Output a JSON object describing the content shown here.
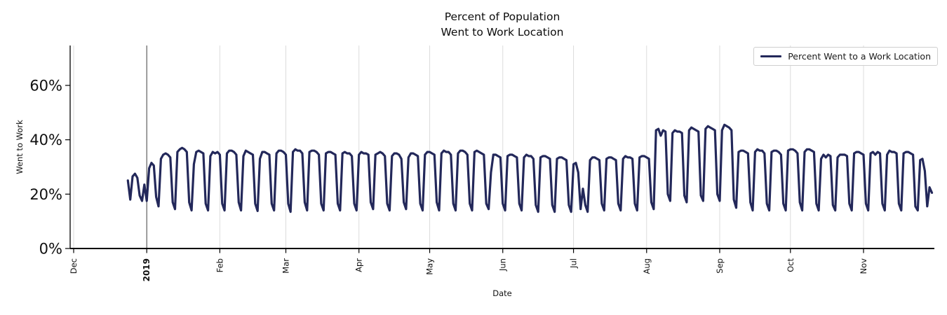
{
  "title": {
    "line1": "Percent of Population",
    "line2": "Went to Work Location"
  },
  "colors": {
    "line": "#23285a",
    "grid": "#dcdcdc",
    "year_line": "#3f3f3f",
    "spine": "#000000",
    "text": "#111111"
  },
  "chart_data": {
    "type": "line",
    "title": "Percent of Population\nWent to Work Location",
    "xlabel": "Date",
    "ylabel": "Went to Work",
    "legend_label": "Percent Went to a Work Location",
    "legend_position": "upper right",
    "grid": "vertical month gridlines only",
    "ylim": [
      0,
      75
    ],
    "y_unit": "%",
    "xlim_days_from_2018_12_01": [
      -1.5,
      365.5
    ],
    "y_ticks": [
      {
        "value": 0,
        "label": "0%"
      },
      {
        "value": 20,
        "label": "20%"
      },
      {
        "value": 40,
        "label": "40%"
      },
      {
        "value": 60,
        "label": "60%"
      }
    ],
    "x_ticks": [
      {
        "day": 0,
        "label": "Dec",
        "emphasis": false
      },
      {
        "day": 31,
        "label": "2019",
        "emphasis": true
      },
      {
        "day": 62,
        "label": "Feb",
        "emphasis": false
      },
      {
        "day": 90,
        "label": "Mar",
        "emphasis": false
      },
      {
        "day": 121,
        "label": "Apr",
        "emphasis": false
      },
      {
        "day": 151,
        "label": "May",
        "emphasis": false
      },
      {
        "day": 182,
        "label": "Jun",
        "emphasis": false
      },
      {
        "day": 212,
        "label": "Jul",
        "emphasis": false
      },
      {
        "day": 243,
        "label": "Aug",
        "emphasis": false
      },
      {
        "day": 274,
        "label": "Sep",
        "emphasis": false
      },
      {
        "day": 304,
        "label": "Oct",
        "emphasis": false
      },
      {
        "day": 335,
        "label": "Nov",
        "emphasis": false
      }
    ],
    "series": [
      {
        "name": "Percent Went to a Work Location",
        "color": "#23285a",
        "unit": "%",
        "start_date": "2018-12-24",
        "start_day_offset_from_2018_12_01": 23,
        "end_date": "2019-11-30",
        "cadence": "daily; weekly_values are Mon-Sun weeks, last week ends Sat Nov 30",
        "weekly_values": [
          [
            25,
            18,
            26.5,
            27.5,
            26,
            19.5,
            17.5
          ],
          [
            23.5,
            17.5,
            29.5,
            31.5,
            30.5,
            19,
            15.5
          ],
          [
            33,
            34.5,
            35,
            34.5,
            33.5,
            17,
            14.5
          ],
          [
            35.5,
            36.5,
            37,
            36.5,
            35.5,
            17,
            14
          ],
          [
            31,
            35.5,
            36,
            35.5,
            35,
            16.5,
            14
          ],
          [
            34,
            35.5,
            35,
            35.5,
            34.5,
            16.5,
            14
          ],
          [
            35,
            36,
            36,
            35.5,
            34.5,
            17,
            14
          ],
          [
            34,
            36,
            35.5,
            35,
            34.5,
            16.5,
            13.8
          ],
          [
            33,
            35.5,
            35.5,
            35,
            34.5,
            16.5,
            14
          ],
          [
            35,
            36,
            36,
            35.5,
            34.5,
            16.5,
            13.5
          ],
          [
            35.5,
            36.5,
            36,
            36,
            35,
            17,
            14
          ],
          [
            35.5,
            36,
            36,
            35.5,
            34.5,
            16.5,
            14
          ],
          [
            35,
            35.5,
            35.5,
            35,
            34.5,
            16.5,
            14
          ],
          [
            35,
            35.5,
            35,
            35,
            34,
            16.5,
            14
          ],
          [
            34.5,
            35.5,
            35,
            35,
            34.5,
            17,
            14.5
          ],
          [
            34.5,
            35,
            35.5,
            35,
            34,
            16.5,
            14
          ],
          [
            34,
            35,
            35,
            34.5,
            33,
            17,
            14.5
          ],
          [
            33.5,
            35,
            35,
            34.5,
            34,
            16.5,
            14
          ],
          [
            34.5,
            35.5,
            35.5,
            35,
            34.5,
            17,
            14
          ],
          [
            35,
            36,
            35.5,
            35.5,
            34.5,
            16.5,
            14
          ],
          [
            35,
            36,
            36,
            35.5,
            34.5,
            16.5,
            14
          ],
          [
            35.5,
            36,
            35.5,
            35,
            34.5,
            16.5,
            14.5
          ],
          [
            28,
            34.5,
            34.5,
            34,
            33.5,
            16.5,
            14
          ],
          [
            34,
            34.5,
            34.5,
            34,
            33.5,
            16.5,
            14
          ],
          [
            33.5,
            34.5,
            34,
            34,
            33,
            16,
            13.5
          ],
          [
            33.5,
            34,
            34,
            33.5,
            33,
            16,
            13.5
          ],
          [
            33,
            33.5,
            33.5,
            33,
            32.5,
            16,
            13.5
          ],
          [
            31,
            31.5,
            28,
            14.5,
            22,
            16,
            13.5
          ],
          [
            32.5,
            33.5,
            33.5,
            33,
            32.5,
            16.5,
            14
          ],
          [
            33,
            33.5,
            33.5,
            33,
            32.5,
            16.5,
            14
          ],
          [
            33,
            34,
            33.5,
            33.5,
            33,
            16.5,
            14
          ],
          [
            33.5,
            34,
            34,
            33.5,
            33,
            17,
            14.5
          ],
          [
            43.5,
            44,
            41.5,
            43.5,
            43,
            20,
            17.5
          ],
          [
            42.5,
            43.5,
            43,
            43,
            42.5,
            19.5,
            17
          ],
          [
            43.5,
            44.5,
            44,
            43.5,
            43,
            19.5,
            17.5
          ],
          [
            44,
            45,
            44.5,
            44,
            43.5,
            20,
            17.5
          ],
          [
            43.5,
            45.5,
            45,
            44.5,
            43.5,
            18,
            15
          ],
          [
            35.5,
            36,
            36,
            35.5,
            35,
            17,
            14
          ],
          [
            35.5,
            36.5,
            36,
            36,
            35,
            16.5,
            14
          ],
          [
            35.5,
            36,
            36,
            35.5,
            34.5,
            16.5,
            14
          ],
          [
            36,
            36.5,
            36.5,
            36,
            35,
            17,
            14
          ],
          [
            35.5,
            36.5,
            36.5,
            36,
            35.5,
            16.5,
            14
          ],
          [
            33,
            34.5,
            33.5,
            34.5,
            34,
            16,
            14
          ],
          [
            33.5,
            34.5,
            34.5,
            34.5,
            34,
            16.5,
            14
          ],
          [
            35,
            35.5,
            35.5,
            35,
            34.5,
            16.5,
            14
          ],
          [
            35,
            35.5,
            34.5,
            35.5,
            35,
            16.5,
            14
          ],
          [
            34.5,
            36,
            35.5,
            35.5,
            35,
            16.5,
            14
          ],
          [
            35,
            35.5,
            35.5,
            35,
            34.5,
            15.5,
            14
          ],
          [
            32.5,
            33,
            28.5,
            15.5,
            22.5,
            20.5
          ]
        ]
      }
    ]
  }
}
